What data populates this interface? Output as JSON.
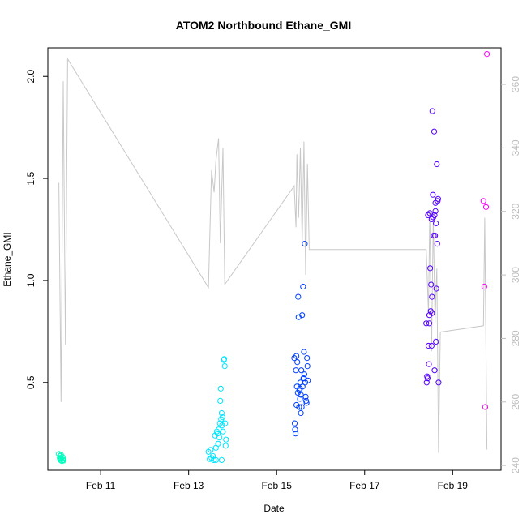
{
  "chart_data": {
    "type": "scatter",
    "title": "ATOM2 Northbound Ethane_GMI",
    "xlabel": "Date",
    "ylabel": "Ethane_GMI",
    "x_unit": "day of February",
    "xlim": [
      9.8,
      20.1
    ],
    "ylim": [
      0.07,
      2.14
    ],
    "x_ticks": [
      {
        "value": 11,
        "label": "Feb 11"
      },
      {
        "value": 13,
        "label": "Feb 13"
      },
      {
        "value": 15,
        "label": "Feb 15"
      },
      {
        "value": 17,
        "label": "Feb 17"
      },
      {
        "value": 19,
        "label": "Feb 19"
      }
    ],
    "y_ticks": [
      {
        "value": 0.5,
        "label": "0.5"
      },
      {
        "value": 1.0,
        "label": "1.0"
      },
      {
        "value": 1.5,
        "label": "1.5"
      },
      {
        "value": 2.0,
        "label": "2.0"
      }
    ],
    "y2_lim": [
      238.5,
      371.5
    ],
    "y2_ticks": [
      {
        "value": 240,
        "label": "240"
      },
      {
        "value": 260,
        "label": "260"
      },
      {
        "value": 280,
        "label": "280"
      },
      {
        "value": 300,
        "label": "300"
      },
      {
        "value": 320,
        "label": "320"
      },
      {
        "value": 340,
        "label": "340"
      },
      {
        "value": 360,
        "label": "360"
      }
    ],
    "grid": false,
    "legend": "none",
    "colors": {
      "flight_1": "#00ffbf",
      "flight_2": "#00e5ff",
      "flight_3": "#0040ff",
      "flight_4": "#5500ff",
      "flight_5": "#ff00ff",
      "track_line": "#c8c8c8",
      "axis": "#000000",
      "secondary_axis": "#bebebe"
    },
    "series": [
      {
        "color": "#00ffbf",
        "points": [
          [
            10.05,
            0.15
          ],
          [
            10.07,
            0.13
          ],
          [
            10.08,
            0.14
          ],
          [
            10.09,
            0.12
          ],
          [
            10.1,
            0.13
          ],
          [
            10.11,
            0.125
          ],
          [
            10.12,
            0.115
          ],
          [
            10.13,
            0.135
          ],
          [
            10.14,
            0.12
          ],
          [
            10.15,
            0.128
          ],
          [
            10.16,
            0.118
          ],
          [
            10.1,
            0.145
          ]
        ]
      },
      {
        "color": "#00e5ff",
        "points": [
          [
            13.45,
            0.16
          ],
          [
            13.48,
            0.125
          ],
          [
            13.5,
            0.17
          ],
          [
            13.52,
            0.13
          ],
          [
            13.55,
            0.14
          ],
          [
            13.57,
            0.12
          ],
          [
            13.6,
            0.24
          ],
          [
            13.62,
            0.18
          ],
          [
            13.64,
            0.26
          ],
          [
            13.66,
            0.25
          ],
          [
            13.67,
            0.2
          ],
          [
            13.68,
            0.27
          ],
          [
            13.7,
            0.23
          ],
          [
            13.71,
            0.3
          ],
          [
            13.72,
            0.41
          ],
          [
            13.73,
            0.47
          ],
          [
            13.74,
            0.32
          ],
          [
            13.75,
            0.35
          ],
          [
            13.76,
            0.29
          ],
          [
            13.77,
            0.33
          ],
          [
            13.78,
            0.26
          ],
          [
            13.8,
            0.61
          ],
          [
            13.81,
            0.615
          ],
          [
            13.82,
            0.58
          ],
          [
            13.83,
            0.3
          ],
          [
            13.84,
            0.19
          ],
          [
            13.85,
            0.22
          ],
          [
            13.62,
            0.12
          ],
          [
            13.75,
            0.12
          ]
        ]
      },
      {
        "color": "#0040ff",
        "points": [
          [
            15.4,
            0.62
          ],
          [
            15.41,
            0.3
          ],
          [
            15.42,
            0.27
          ],
          [
            15.43,
            0.25
          ],
          [
            15.44,
            0.56
          ],
          [
            15.45,
            0.63
          ],
          [
            15.46,
            0.48
          ],
          [
            15.47,
            0.6
          ],
          [
            15.48,
            0.45
          ],
          [
            15.49,
            0.92
          ],
          [
            15.5,
            0.82
          ],
          [
            15.51,
            0.38
          ],
          [
            15.52,
            0.46
          ],
          [
            15.53,
            0.42
          ],
          [
            15.54,
            0.5
          ],
          [
            15.55,
            0.44
          ],
          [
            15.56,
            0.56
          ],
          [
            15.57,
            0.38
          ],
          [
            15.58,
            0.83
          ],
          [
            15.59,
            0.48
          ],
          [
            15.6,
            0.97
          ],
          [
            15.61,
            0.52
          ],
          [
            15.62,
            0.65
          ],
          [
            15.63,
            0.54
          ],
          [
            15.64,
            1.18
          ],
          [
            15.65,
            0.5
          ],
          [
            15.66,
            0.43
          ],
          [
            15.67,
            0.41
          ],
          [
            15.68,
            0.4
          ],
          [
            15.69,
            0.62
          ],
          [
            15.7,
            0.58
          ],
          [
            15.71,
            0.51
          ],
          [
            15.55,
            0.35
          ],
          [
            15.53,
            0.47
          ],
          [
            15.45,
            0.39
          ],
          [
            15.62,
            0.52
          ]
        ]
      },
      {
        "color": "#5500ff",
        "points": [
          [
            18.4,
            0.79
          ],
          [
            18.41,
            0.5
          ],
          [
            18.42,
            0.53
          ],
          [
            18.43,
            0.52
          ],
          [
            18.44,
            1.32
          ],
          [
            18.45,
            0.68
          ],
          [
            18.46,
            0.59
          ],
          [
            18.47,
            0.83
          ],
          [
            18.48,
            1.33
          ],
          [
            18.49,
            1.06
          ],
          [
            18.5,
            0.85
          ],
          [
            18.51,
            0.98
          ],
          [
            18.52,
            1.3
          ],
          [
            18.53,
            0.92
          ],
          [
            18.54,
            1.83
          ],
          [
            18.55,
            1.42
          ],
          [
            18.56,
            1.31
          ],
          [
            18.57,
            1.22
          ],
          [
            18.58,
            1.73
          ],
          [
            18.59,
            1.32
          ],
          [
            18.6,
            1.22
          ],
          [
            18.61,
            1.38
          ],
          [
            18.62,
            0.7
          ],
          [
            18.63,
            0.96
          ],
          [
            18.64,
            1.57
          ],
          [
            18.65,
            1.18
          ],
          [
            18.66,
            1.39
          ],
          [
            18.67,
            1.4
          ],
          [
            18.68,
            0.5
          ],
          [
            18.47,
            0.79
          ],
          [
            18.52,
            0.68
          ],
          [
            18.59,
            0.56
          ],
          [
            18.53,
            0.84
          ],
          [
            18.62,
            1.28
          ],
          [
            18.61,
            1.34
          ]
        ]
      },
      {
        "color": "#ff00ff",
        "points": [
          [
            19.7,
            1.39
          ],
          [
            19.72,
            0.97
          ],
          [
            19.74,
            0.38
          ],
          [
            19.76,
            1.36
          ],
          [
            19.78,
            2.11
          ]
        ]
      }
    ],
    "track_line": {
      "axis": "secondary",
      "color": "#c8c8c8",
      "points": [
        [
          10.05,
          329
        ],
        [
          10.1,
          260
        ],
        [
          10.15,
          361
        ],
        [
          10.2,
          278
        ],
        [
          10.25,
          368
        ],
        [
          13.45,
          296
        ],
        [
          13.52,
          333
        ],
        [
          13.58,
          326
        ],
        [
          13.62,
          336
        ],
        [
          13.68,
          343
        ],
        [
          13.72,
          310
        ],
        [
          13.78,
          340
        ],
        [
          13.82,
          297
        ],
        [
          15.4,
          328
        ],
        [
          15.44,
          315
        ],
        [
          15.46,
          338
        ],
        [
          15.5,
          318
        ],
        [
          15.54,
          340
        ],
        [
          15.58,
          310
        ],
        [
          15.62,
          342
        ],
        [
          15.66,
          300
        ],
        [
          15.7,
          335
        ],
        [
          15.74,
          308
        ],
        [
          18.4,
          308
        ],
        [
          18.45,
          288
        ],
        [
          18.48,
          320
        ],
        [
          18.52,
          276
        ],
        [
          18.56,
          318
        ],
        [
          18.6,
          285
        ],
        [
          18.64,
          302
        ],
        [
          18.68,
          244
        ],
        [
          18.72,
          282
        ],
        [
          19.7,
          284
        ],
        [
          19.73,
          318
        ],
        [
          19.78,
          245
        ]
      ]
    }
  }
}
